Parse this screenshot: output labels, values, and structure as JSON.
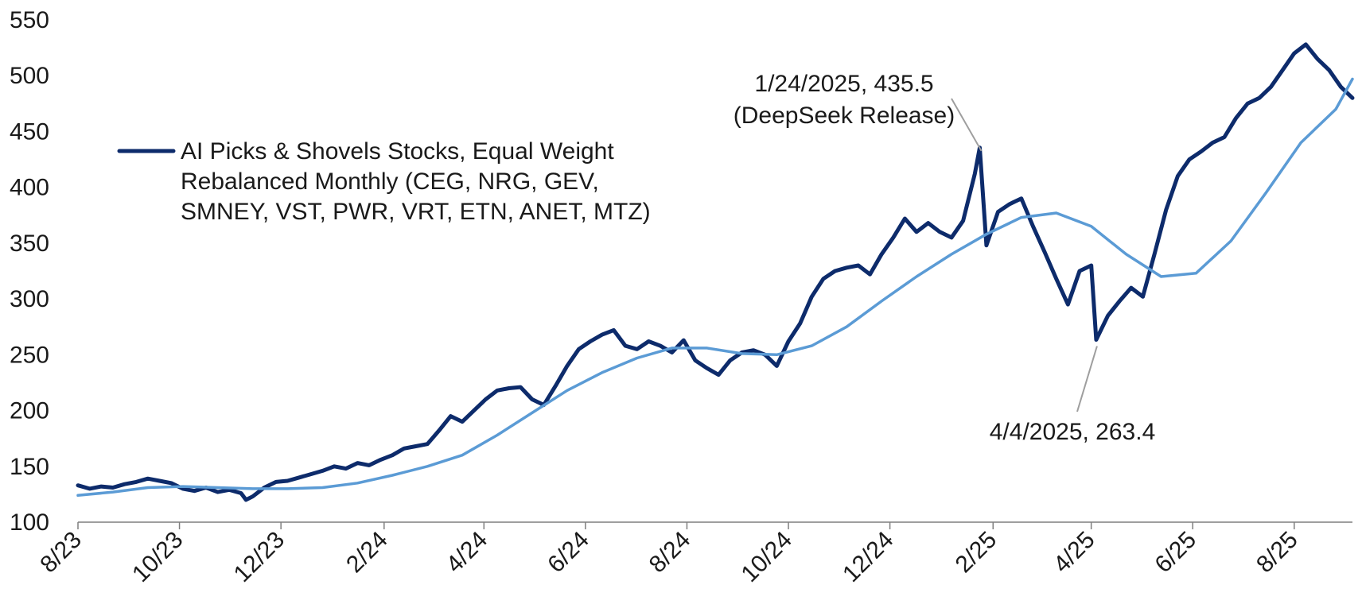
{
  "chart_data": {
    "type": "line",
    "title": "",
    "xlabel": "",
    "ylabel": "",
    "ylim": [
      100,
      550
    ],
    "yticks": [
      100,
      150,
      200,
      250,
      300,
      350,
      400,
      450,
      500,
      550
    ],
    "xlim": [
      "2023-08-01",
      "2025-09-05"
    ],
    "xticks": [
      {
        "label": "8/23",
        "date": "2023-08-01"
      },
      {
        "label": "10/23",
        "date": "2023-10-01"
      },
      {
        "label": "12/23",
        "date": "2023-12-01"
      },
      {
        "label": "2/24",
        "date": "2024-02-01"
      },
      {
        "label": "4/24",
        "date": "2024-04-01"
      },
      {
        "label": "6/24",
        "date": "2024-06-01"
      },
      {
        "label": "8/24",
        "date": "2024-08-01"
      },
      {
        "label": "10/24",
        "date": "2024-10-01"
      },
      {
        "label": "12/24",
        "date": "2024-12-01"
      },
      {
        "label": "2/25",
        "date": "2025-02-01"
      },
      {
        "label": "4/25",
        "date": "2025-04-01"
      },
      {
        "label": "6/25",
        "date": "2025-06-01"
      },
      {
        "label": "8/25",
        "date": "2025-08-01"
      }
    ],
    "grid": false,
    "legend_position": "left",
    "series": [
      {
        "name": "AI Picks & Shovels Stocks, Equal Weight Rebalanced Monthly (CEG, NRG, GEV, SMNEY, VST, PWR, VRT, ETN, ANET, MTZ)",
        "color": "#0d2b6b",
        "points": [
          [
            "2023-08-01",
            133
          ],
          [
            "2023-08-08",
            130
          ],
          [
            "2023-08-15",
            132
          ],
          [
            "2023-08-22",
            131
          ],
          [
            "2023-08-29",
            134
          ],
          [
            "2023-09-05",
            136
          ],
          [
            "2023-09-12",
            139
          ],
          [
            "2023-09-19",
            137
          ],
          [
            "2023-09-26",
            135
          ],
          [
            "2023-10-03",
            130
          ],
          [
            "2023-10-10",
            128
          ],
          [
            "2023-10-17",
            131
          ],
          [
            "2023-10-24",
            127
          ],
          [
            "2023-10-31",
            129
          ],
          [
            "2023-11-07",
            126
          ],
          [
            "2023-11-10",
            120
          ],
          [
            "2023-11-14",
            123
          ],
          [
            "2023-11-21",
            131
          ],
          [
            "2023-11-28",
            136
          ],
          [
            "2023-12-05",
            137
          ],
          [
            "2023-12-12",
            140
          ],
          [
            "2023-12-19",
            143
          ],
          [
            "2023-12-26",
            146
          ],
          [
            "2024-01-02",
            150
          ],
          [
            "2024-01-09",
            148
          ],
          [
            "2024-01-16",
            153
          ],
          [
            "2024-01-23",
            151
          ],
          [
            "2024-01-30",
            156
          ],
          [
            "2024-02-06",
            160
          ],
          [
            "2024-02-13",
            166
          ],
          [
            "2024-02-20",
            168
          ],
          [
            "2024-02-27",
            170
          ],
          [
            "2024-03-05",
            182
          ],
          [
            "2024-03-12",
            195
          ],
          [
            "2024-03-19",
            190
          ],
          [
            "2024-03-26",
            200
          ],
          [
            "2024-04-02",
            210
          ],
          [
            "2024-04-09",
            218
          ],
          [
            "2024-04-16",
            220
          ],
          [
            "2024-04-23",
            221
          ],
          [
            "2024-04-30",
            210
          ],
          [
            "2024-05-07",
            205
          ],
          [
            "2024-05-14",
            222
          ],
          [
            "2024-05-21",
            240
          ],
          [
            "2024-05-28",
            255
          ],
          [
            "2024-06-04",
            262
          ],
          [
            "2024-06-11",
            268
          ],
          [
            "2024-06-18",
            272
          ],
          [
            "2024-06-25",
            258
          ],
          [
            "2024-07-02",
            255
          ],
          [
            "2024-07-09",
            262
          ],
          [
            "2024-07-16",
            258
          ],
          [
            "2024-07-23",
            252
          ],
          [
            "2024-07-30",
            263
          ],
          [
            "2024-08-06",
            245
          ],
          [
            "2024-08-13",
            238
          ],
          [
            "2024-08-20",
            232
          ],
          [
            "2024-08-27",
            245
          ],
          [
            "2024-09-03",
            252
          ],
          [
            "2024-09-10",
            254
          ],
          [
            "2024-09-17",
            250
          ],
          [
            "2024-09-24",
            240
          ],
          [
            "2024-10-01",
            262
          ],
          [
            "2024-10-08",
            278
          ],
          [
            "2024-10-15",
            302
          ],
          [
            "2024-10-22",
            318
          ],
          [
            "2024-10-29",
            325
          ],
          [
            "2024-11-05",
            328
          ],
          [
            "2024-11-12",
            330
          ],
          [
            "2024-11-19",
            322
          ],
          [
            "2024-11-26",
            340
          ],
          [
            "2024-12-03",
            355
          ],
          [
            "2024-12-10",
            372
          ],
          [
            "2024-12-17",
            360
          ],
          [
            "2024-12-24",
            368
          ],
          [
            "2024-12-31",
            360
          ],
          [
            "2025-01-07",
            355
          ],
          [
            "2025-01-14",
            370
          ],
          [
            "2025-01-21",
            412
          ],
          [
            "2025-01-24",
            435.5
          ],
          [
            "2025-01-28",
            348
          ],
          [
            "2025-02-04",
            378
          ],
          [
            "2025-02-11",
            385
          ],
          [
            "2025-02-18",
            390
          ],
          [
            "2025-02-25",
            365
          ],
          [
            "2025-03-04",
            342
          ],
          [
            "2025-03-11",
            318
          ],
          [
            "2025-03-18",
            295
          ],
          [
            "2025-03-25",
            325
          ],
          [
            "2025-04-01",
            330
          ],
          [
            "2025-04-04",
            263.4
          ],
          [
            "2025-04-11",
            285
          ],
          [
            "2025-04-18",
            298
          ],
          [
            "2025-04-25",
            310
          ],
          [
            "2025-05-02",
            302
          ],
          [
            "2025-05-09",
            340
          ],
          [
            "2025-05-16",
            380
          ],
          [
            "2025-05-23",
            410
          ],
          [
            "2025-05-30",
            425
          ],
          [
            "2025-06-06",
            432
          ],
          [
            "2025-06-13",
            440
          ],
          [
            "2025-06-20",
            445
          ],
          [
            "2025-06-27",
            462
          ],
          [
            "2025-07-04",
            475
          ],
          [
            "2025-07-11",
            480
          ],
          [
            "2025-07-18",
            490
          ],
          [
            "2025-07-25",
            505
          ],
          [
            "2025-08-01",
            520
          ],
          [
            "2025-08-08",
            528
          ],
          [
            "2025-08-15",
            515
          ],
          [
            "2025-08-22",
            505
          ],
          [
            "2025-08-29",
            490
          ],
          [
            "2025-09-05",
            480
          ]
        ]
      },
      {
        "name": "",
        "color": "#5b9bd5",
        "points": [
          [
            "2023-08-01",
            124
          ],
          [
            "2023-08-22",
            127
          ],
          [
            "2023-09-12",
            131
          ],
          [
            "2023-10-03",
            132
          ],
          [
            "2023-10-24",
            131
          ],
          [
            "2023-11-14",
            130
          ],
          [
            "2023-12-05",
            130
          ],
          [
            "2023-12-26",
            131
          ],
          [
            "2024-01-16",
            135
          ],
          [
            "2024-02-06",
            142
          ],
          [
            "2024-02-27",
            150
          ],
          [
            "2024-03-19",
            160
          ],
          [
            "2024-04-09",
            178
          ],
          [
            "2024-04-30",
            198
          ],
          [
            "2024-05-21",
            218
          ],
          [
            "2024-06-11",
            234
          ],
          [
            "2024-07-02",
            247
          ],
          [
            "2024-07-23",
            256
          ],
          [
            "2024-08-13",
            256
          ],
          [
            "2024-09-03",
            251
          ],
          [
            "2024-09-24",
            250
          ],
          [
            "2024-10-15",
            258
          ],
          [
            "2024-11-05",
            275
          ],
          [
            "2024-11-26",
            298
          ],
          [
            "2024-12-17",
            320
          ],
          [
            "2025-01-07",
            340
          ],
          [
            "2025-01-28",
            358
          ],
          [
            "2025-02-18",
            373
          ],
          [
            "2025-03-11",
            377
          ],
          [
            "2025-04-01",
            365
          ],
          [
            "2025-04-22",
            340
          ],
          [
            "2025-05-13",
            320
          ],
          [
            "2025-06-03",
            323
          ],
          [
            "2025-06-24",
            352
          ],
          [
            "2025-07-15",
            395
          ],
          [
            "2025-08-05",
            440
          ],
          [
            "2025-08-26",
            470
          ],
          [
            "2025-09-05",
            497
          ]
        ]
      }
    ],
    "annotations": [
      {
        "lines": [
          "1/24/2025, 435.5",
          "(DeepSeek Release)"
        ],
        "date": "2025-01-24",
        "value": 435.5
      },
      {
        "lines": [
          "4/4/2025, 263.4"
        ],
        "date": "2025-04-04",
        "value": 263.4
      }
    ]
  }
}
